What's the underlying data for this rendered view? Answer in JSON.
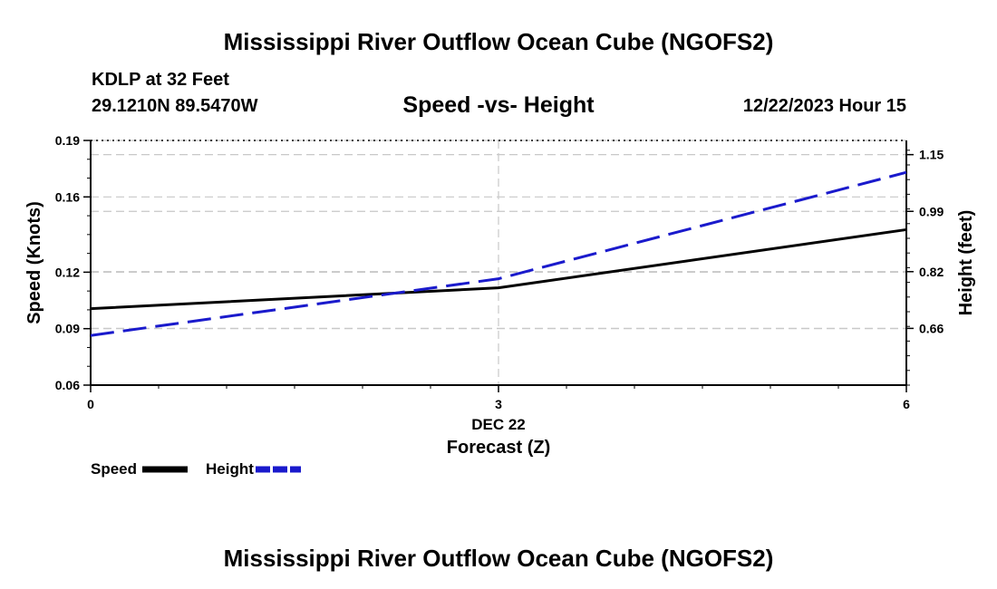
{
  "page": {
    "title_top": "Mississippi River Outflow Ocean Cube (NGOFS2)",
    "station": "KDLP at 32 Feet",
    "coords": "29.1210N  89.5470W",
    "subtitle": "Speed -vs- Height",
    "datetime": "12/22/2023 Hour 15",
    "title_bottom": "Mississippi River Outflow Ocean Cube (NGOFS2)",
    "legend": [
      {
        "label": "Speed",
        "color": "#000000",
        "style": "solid"
      },
      {
        "label": "Height",
        "color": "#1a1acc",
        "style": "dashed"
      }
    ]
  },
  "chart_data": {
    "type": "line",
    "title": "Speed -vs- Height",
    "xlabel": "Forecast (Z)",
    "x_date_label": "DEC 22",
    "x": [
      0,
      3,
      6
    ],
    "xlim": [
      0,
      6
    ],
    "x_ticks": [
      "0",
      "3",
      "6"
    ],
    "ylabel_left": "Speed (Knots)",
    "ylim_left": [
      0.06,
      0.19
    ],
    "y_ticks_left": [
      "0.06",
      "0.09",
      "0.12",
      "0.16",
      "0.19"
    ],
    "ylabel_right": "Height (feet)",
    "ylim_right": [
      0.5,
      1.19
    ],
    "y_ticks_right": [
      "0.66",
      "0.82",
      "0.99",
      "1.15"
    ],
    "series": [
      {
        "name": "Speed",
        "axis": "left",
        "values": [
          0.1006,
          0.1117,
          0.1426
        ],
        "color": "#000000",
        "style": "solid"
      },
      {
        "name": "Height",
        "axis": "right",
        "values": [
          0.64,
          0.8,
          1.1
        ],
        "color": "#1a1acc",
        "style": "dashed"
      }
    ]
  }
}
